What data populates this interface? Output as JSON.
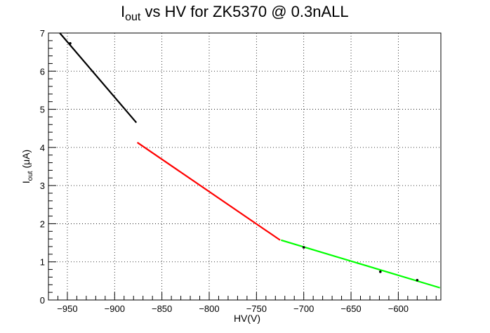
{
  "chart_data": {
    "type": "line",
    "title": {
      "main": "I",
      "sub": "out",
      "rest": " vs HV for ZK5370 @ 0.3nALL"
    },
    "xlabel": "HV(V)",
    "ylabel": {
      "main": "I",
      "sub": "out",
      "rest": " (μA)"
    },
    "xlim": [
      -970,
      -555
    ],
    "ylim": [
      0,
      7
    ],
    "x_ticks": [
      -950,
      -900,
      -850,
      -800,
      -750,
      -700,
      -650,
      -600
    ],
    "y_ticks": [
      0,
      1,
      2,
      3,
      4,
      5,
      6,
      7
    ],
    "grid": true,
    "series": [
      {
        "color": "#000000",
        "x": [
          -958,
          -877
        ],
        "y": [
          7.0,
          4.65
        ]
      },
      {
        "color": "#ff0000",
        "x": [
          -876,
          -725
        ],
        "y": [
          4.13,
          1.57
        ]
      },
      {
        "color": "#00ff00",
        "x": [
          -724,
          -556
        ],
        "y": [
          1.57,
          0.32
        ]
      }
    ],
    "markers": [
      {
        "x": -947,
        "y": 6.73
      },
      {
        "x": -700,
        "y": 1.38
      },
      {
        "x": -619,
        "y": 0.74
      },
      {
        "x": -580,
        "y": 0.52
      }
    ]
  }
}
